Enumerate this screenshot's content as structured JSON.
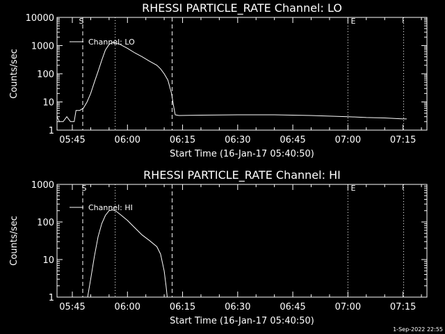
{
  "chart_data": [
    {
      "type": "line",
      "title": "RHESSI PARTICLE_RATE Channel: LO",
      "xlabel": "Start Time (16-Jan-17 05:40:50)",
      "ylabel": "Counts/sec",
      "yscale": "log",
      "ylim": [
        1,
        10000
      ],
      "yticks": [
        "1",
        "10",
        "100",
        "1000",
        "10000"
      ],
      "xticks": [
        "05:45",
        "06:00",
        "06:15",
        "06:30",
        "06:45",
        "07:00",
        "07:15"
      ],
      "xlim": [
        "05:40:50",
        "07:21:30"
      ],
      "legend": {
        "position": "top-left",
        "entries": [
          "Channel: LO"
        ]
      },
      "markers": {
        "start": "S",
        "end": "E"
      },
      "vlines": [
        {
          "time": "05:47:50",
          "style": "dashed"
        },
        {
          "time": "05:56:40",
          "style": "dotted"
        },
        {
          "time": "06:12:10",
          "style": "dashed"
        },
        {
          "time": "07:00:00",
          "style": "dotted"
        },
        {
          "time": "07:15:10",
          "style": "dotted"
        }
      ],
      "series": [
        {
          "x": [
            "05:40:50",
            "05:41:30",
            "05:42:30",
            "05:43:30",
            "05:44:30",
            "05:45:30",
            "05:46:00",
            "05:47:00",
            "05:48:00",
            "05:49:00",
            "05:50:00",
            "05:51:00",
            "05:52:00",
            "05:53:00",
            "05:54:00",
            "05:55:00",
            "05:56:00",
            "05:57:00",
            "05:58:00",
            "06:00:00",
            "06:02:00",
            "06:04:00",
            "06:06:00",
            "06:08:00",
            "06:09:00",
            "06:10:00",
            "06:11:00",
            "06:12:00",
            "06:12:40",
            "06:13:00",
            "06:14:00",
            "06:20:00",
            "06:30:00",
            "06:40:00",
            "06:50:00",
            "07:00:00",
            "07:05:00",
            "07:10:00",
            "07:15:00",
            "07:16:00"
          ],
          "values": [
            3,
            2,
            2,
            3,
            2,
            2,
            5,
            5,
            6,
            10,
            20,
            50,
            120,
            300,
            700,
            1100,
            1300,
            1200,
            1100,
            800,
            550,
            400,
            280,
            200,
            150,
            100,
            60,
            20,
            6,
            3.5,
            3.3,
            3.4,
            3.5,
            3.5,
            3.3,
            3.0,
            2.8,
            2.7,
            2.5,
            2.5
          ]
        }
      ]
    },
    {
      "type": "line",
      "title": "RHESSI PARTICLE_RATE Channel: HI",
      "xlabel": "Start Time (16-Jan-17 05:40:50)",
      "ylabel": "Counts/sec",
      "yscale": "log",
      "ylim": [
        1,
        1000
      ],
      "yticks": [
        "1",
        "10",
        "100",
        "1000"
      ],
      "xticks": [
        "05:45",
        "06:00",
        "06:15",
        "06:30",
        "06:45",
        "07:00",
        "07:15"
      ],
      "xlim": [
        "05:40:50",
        "07:21:30"
      ],
      "legend": {
        "position": "top-left",
        "entries": [
          "Channel: HI"
        ]
      },
      "markers": {
        "start": "S",
        "end": "E"
      },
      "vlines": [
        {
          "time": "05:47:50",
          "style": "dashed"
        },
        {
          "time": "05:56:40",
          "style": "dotted"
        },
        {
          "time": "06:12:10",
          "style": "dashed"
        },
        {
          "time": "07:00:00",
          "style": "dotted"
        },
        {
          "time": "07:15:10",
          "style": "dotted"
        }
      ],
      "series": [
        {
          "x": [
            "05:49:10",
            "05:50:00",
            "05:51:00",
            "05:52:00",
            "05:53:00",
            "05:54:00",
            "05:55:00",
            "05:56:00",
            "05:57:00",
            "05:58:00",
            "06:00:00",
            "06:02:00",
            "06:04:00",
            "06:06:00",
            "06:08:00",
            "06:09:00",
            "06:10:00",
            "06:10:30",
            "06:10:50"
          ],
          "values": [
            1,
            3,
            12,
            40,
            90,
            150,
            200,
            210,
            190,
            160,
            110,
            70,
            45,
            32,
            22,
            14,
            5,
            2,
            1
          ]
        }
      ]
    }
  ],
  "footer": {
    "timestamp": "1-Sep-2022 22:55"
  }
}
